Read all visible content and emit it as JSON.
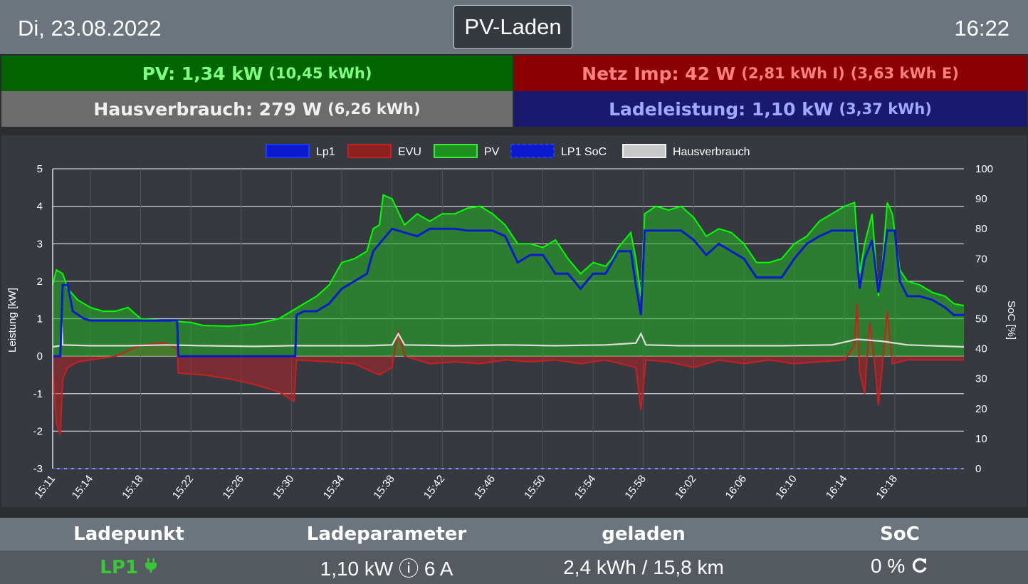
{
  "header": {
    "date": "Di, 23.08.2022",
    "mode": "PV-Laden",
    "time": "16:22"
  },
  "tiles": {
    "pv": {
      "label": "PV: 1,34 kW",
      "detail": "(10,45 kWh)"
    },
    "grid": {
      "label": "Netz Imp: 42 W",
      "detail_import": "(2,81 kWh I)",
      "detail_export": "(3,63 kWh E)"
    },
    "house": {
      "label": "Hausverbrauch: 279 W",
      "detail": "(6,26 kWh)"
    },
    "charge": {
      "label": "Ladeleistung: 1,10 kW",
      "detail": "(3,37 kWh)"
    }
  },
  "colors": {
    "pv": "#00ff00",
    "lp1": "#0a1acc",
    "evu": "#c82020",
    "house": "#dddddd"
  },
  "chart_data": {
    "type": "line",
    "legend": [
      "Lp1",
      "EVU",
      "PV",
      "LP1 SoC",
      "Hausverbrauch"
    ],
    "ylabel": "Leistung [kW]",
    "y2label": "SoC [%]",
    "ylim": [
      -3,
      5
    ],
    "y2lim": [
      0,
      100
    ],
    "yticks": [
      "5",
      "4",
      "3",
      "2",
      "1",
      "0",
      "-1",
      "-2",
      "-3"
    ],
    "y2ticks": [
      "100",
      "90",
      "80",
      "70",
      "60",
      "50",
      "40",
      "30",
      "20",
      "10",
      "0"
    ],
    "xticks": [
      "15:11",
      "15:14",
      "15:18",
      "15:22",
      "15:26",
      "15:30",
      "15:34",
      "15:38",
      "15:42",
      "15:46",
      "15:50",
      "15:54",
      "15:58",
      "16:02",
      "16:06",
      "16:10",
      "16:14",
      "16:18"
    ],
    "x_minutes": [
      0,
      3,
      7,
      11,
      15,
      19,
      23,
      27,
      31,
      35,
      39,
      43,
      47,
      51,
      55,
      59,
      63,
      67
    ],
    "x_range": [
      0,
      72.5
    ],
    "series": {
      "pv": [
        [
          0,
          1.9
        ],
        [
          0.3,
          2.3
        ],
        [
          0.8,
          2.2
        ],
        [
          1.2,
          1.8
        ],
        [
          2,
          1.5
        ],
        [
          3,
          1.3
        ],
        [
          4,
          1.2
        ],
        [
          5,
          1.2
        ],
        [
          6,
          1.3
        ],
        [
          7,
          1.0
        ],
        [
          9,
          0.95
        ],
        [
          11,
          0.9
        ],
        [
          12,
          0.82
        ],
        [
          14,
          0.8
        ],
        [
          16,
          0.85
        ],
        [
          18,
          1.0
        ],
        [
          19,
          1.2
        ],
        [
          20,
          1.4
        ],
        [
          21,
          1.6
        ],
        [
          22,
          1.9
        ],
        [
          22.5,
          2.2
        ],
        [
          23,
          2.5
        ],
        [
          24,
          2.6
        ],
        [
          25,
          2.8
        ],
        [
          25.5,
          3.4
        ],
        [
          26,
          3.5
        ],
        [
          26.3,
          4.3
        ],
        [
          27,
          4.2
        ],
        [
          28,
          3.5
        ],
        [
          29,
          3.8
        ],
        [
          30,
          3.6
        ],
        [
          31,
          3.8
        ],
        [
          32,
          3.8
        ],
        [
          33,
          3.95
        ],
        [
          34,
          4.0
        ],
        [
          35,
          3.8
        ],
        [
          36,
          3.5
        ],
        [
          37,
          3.0
        ],
        [
          38,
          3.0
        ],
        [
          39,
          2.9
        ],
        [
          40,
          3.1
        ],
        [
          41,
          2.6
        ],
        [
          42,
          2.2
        ],
        [
          43,
          2.5
        ],
        [
          44,
          2.4
        ],
        [
          44.5,
          2.6
        ],
        [
          45,
          2.9
        ],
        [
          46,
          3.3
        ],
        [
          46.4,
          2.6
        ],
        [
          46.8,
          1.6
        ],
        [
          47.1,
          3.8
        ],
        [
          48,
          4.0
        ],
        [
          49,
          3.9
        ],
        [
          50,
          4.0
        ],
        [
          51,
          3.7
        ],
        [
          52,
          3.2
        ],
        [
          53,
          3.4
        ],
        [
          54,
          3.3
        ],
        [
          55,
          3.0
        ],
        [
          56,
          2.5
        ],
        [
          57,
          2.5
        ],
        [
          58,
          2.6
        ],
        [
          59,
          3.0
        ],
        [
          60,
          3.2
        ],
        [
          61,
          3.6
        ],
        [
          62,
          3.8
        ],
        [
          63,
          4.0
        ],
        [
          63.8,
          4.1
        ],
        [
          64.2,
          2.2
        ],
        [
          64.6,
          3.0
        ],
        [
          65.2,
          3.8
        ],
        [
          65.7,
          1.6
        ],
        [
          66,
          2.4
        ],
        [
          66.4,
          4.1
        ],
        [
          66.8,
          3.8
        ],
        [
          67.4,
          2.3
        ],
        [
          68,
          2.0
        ],
        [
          69,
          1.9
        ],
        [
          70,
          1.7
        ],
        [
          71,
          1.6
        ],
        [
          71.7,
          1.4
        ],
        [
          72.5,
          1.35
        ]
      ],
      "lp1": [
        [
          0,
          0
        ],
        [
          0.6,
          0
        ],
        [
          0.8,
          1.9
        ],
        [
          1.2,
          1.9
        ],
        [
          1.6,
          1.2
        ],
        [
          2.5,
          1.0
        ],
        [
          3,
          0.95
        ],
        [
          4,
          0.95
        ],
        [
          5,
          0.95
        ],
        [
          6,
          0.95
        ],
        [
          7,
          0.95
        ],
        [
          8,
          0.95
        ],
        [
          9,
          0.95
        ],
        [
          9.9,
          0.95
        ],
        [
          10,
          0
        ],
        [
          19.3,
          0
        ],
        [
          19.4,
          1.1
        ],
        [
          20,
          1.2
        ],
        [
          21,
          1.2
        ],
        [
          22,
          1.4
        ],
        [
          22.5,
          1.6
        ],
        [
          23,
          1.8
        ],
        [
          24,
          2.0
        ],
        [
          25,
          2.2
        ],
        [
          25.5,
          2.8
        ],
        [
          26,
          3.0
        ],
        [
          27,
          3.4
        ],
        [
          28,
          3.3
        ],
        [
          29,
          3.2
        ],
        [
          30,
          3.4
        ],
        [
          31,
          3.4
        ],
        [
          32,
          3.4
        ],
        [
          33,
          3.35
        ],
        [
          34,
          3.35
        ],
        [
          35,
          3.35
        ],
        [
          36,
          3.2
        ],
        [
          37,
          2.5
        ],
        [
          38,
          2.7
        ],
        [
          39,
          2.7
        ],
        [
          40,
          2.2
        ],
        [
          41,
          2.2
        ],
        [
          42,
          1.8
        ],
        [
          43,
          2.2
        ],
        [
          44,
          2.2
        ],
        [
          44.5,
          2.5
        ],
        [
          45,
          2.8
        ],
        [
          46,
          2.8
        ],
        [
          46.4,
          1.9
        ],
        [
          46.8,
          1.1
        ],
        [
          47.1,
          3.35
        ],
        [
          48,
          3.35
        ],
        [
          49,
          3.35
        ],
        [
          50,
          3.35
        ],
        [
          51,
          3.1
        ],
        [
          52,
          2.7
        ],
        [
          53,
          3.0
        ],
        [
          54,
          2.8
        ],
        [
          55,
          2.6
        ],
        [
          56,
          2.1
        ],
        [
          57,
          2.1
        ],
        [
          58,
          2.1
        ],
        [
          59,
          2.6
        ],
        [
          60,
          3.0
        ],
        [
          61,
          3.2
        ],
        [
          62,
          3.35
        ],
        [
          63,
          3.35
        ],
        [
          63.8,
          3.35
        ],
        [
          64.2,
          1.8
        ],
        [
          64.6,
          2.6
        ],
        [
          65.2,
          3.1
        ],
        [
          65.7,
          1.7
        ],
        [
          66,
          2.3
        ],
        [
          66.4,
          3.35
        ],
        [
          67,
          3.35
        ],
        [
          67.4,
          2.0
        ],
        [
          68,
          1.6
        ],
        [
          69,
          1.6
        ],
        [
          70,
          1.5
        ],
        [
          71,
          1.3
        ],
        [
          71.7,
          1.1
        ],
        [
          72.5,
          1.1
        ]
      ],
      "evu": [
        [
          0,
          -0.3
        ],
        [
          0.3,
          -1.8
        ],
        [
          0.6,
          -2.1
        ],
        [
          0.8,
          -0.6
        ],
        [
          1.2,
          -0.3
        ],
        [
          2,
          -0.15
        ],
        [
          3,
          -0.1
        ],
        [
          5,
          0.0
        ],
        [
          7,
          0.3
        ],
        [
          9,
          0.35
        ],
        [
          9.9,
          0.2
        ],
        [
          10,
          -0.45
        ],
        [
          12,
          -0.5
        ],
        [
          14,
          -0.6
        ],
        [
          16,
          -0.75
        ],
        [
          18,
          -0.95
        ],
        [
          19.2,
          -1.2
        ],
        [
          19.4,
          -0.1
        ],
        [
          22,
          -0.15
        ],
        [
          24,
          -0.2
        ],
        [
          26,
          -0.5
        ],
        [
          27,
          -0.3
        ],
        [
          27.5,
          0.7
        ],
        [
          28,
          0.0
        ],
        [
          30,
          -0.2
        ],
        [
          32,
          -0.15
        ],
        [
          34,
          -0.2
        ],
        [
          36,
          -0.1
        ],
        [
          38,
          -0.15
        ],
        [
          40,
          -0.1
        ],
        [
          42,
          -0.2
        ],
        [
          44,
          -0.1
        ],
        [
          46.4,
          -0.3
        ],
        [
          46.8,
          -1.45
        ],
        [
          47.2,
          -0.1
        ],
        [
          49,
          -0.15
        ],
        [
          51,
          -0.3
        ],
        [
          53,
          -0.1
        ],
        [
          55,
          -0.2
        ],
        [
          57,
          -0.1
        ],
        [
          59,
          -0.2
        ],
        [
          61,
          -0.15
        ],
        [
          63,
          -0.1
        ],
        [
          63.8,
          0.3
        ],
        [
          64,
          1.4
        ],
        [
          64.2,
          -0.4
        ],
        [
          64.6,
          -1.0
        ],
        [
          65,
          0.9
        ],
        [
          65.4,
          -0.2
        ],
        [
          65.7,
          -1.3
        ],
        [
          66,
          -0.3
        ],
        [
          66.4,
          1.2
        ],
        [
          66.8,
          -0.2
        ],
        [
          68,
          -0.1
        ],
        [
          70,
          -0.1
        ],
        [
          72.5,
          -0.1
        ]
      ],
      "house": [
        [
          0,
          0.25
        ],
        [
          0.6,
          0.28
        ],
        [
          0.7,
          1.0
        ],
        [
          0.8,
          0.3
        ],
        [
          3,
          0.28
        ],
        [
          6,
          0.28
        ],
        [
          9,
          0.3
        ],
        [
          12,
          0.28
        ],
        [
          16,
          0.26
        ],
        [
          19,
          0.28
        ],
        [
          22,
          0.28
        ],
        [
          25,
          0.28
        ],
        [
          27,
          0.3
        ],
        [
          27.5,
          0.6
        ],
        [
          28,
          0.3
        ],
        [
          32,
          0.28
        ],
        [
          36,
          0.3
        ],
        [
          40,
          0.28
        ],
        [
          44,
          0.3
        ],
        [
          46.4,
          0.35
        ],
        [
          46.8,
          0.6
        ],
        [
          47.2,
          0.3
        ],
        [
          50,
          0.28
        ],
        [
          54,
          0.28
        ],
        [
          58,
          0.28
        ],
        [
          62,
          0.3
        ],
        [
          64,
          0.45
        ],
        [
          66,
          0.4
        ],
        [
          68,
          0.3
        ],
        [
          72.5,
          0.25
        ]
      ]
    }
  },
  "table": {
    "headers": [
      "Ladepunkt",
      "Ladeparameter",
      "geladen",
      "SoC"
    ],
    "rows": [
      {
        "lp": "LP1",
        "params": "1,10 kW ⓘ 6 A",
        "charged": "2,4 kWh / 15,8 km",
        "soc": "0 %"
      }
    ]
  }
}
